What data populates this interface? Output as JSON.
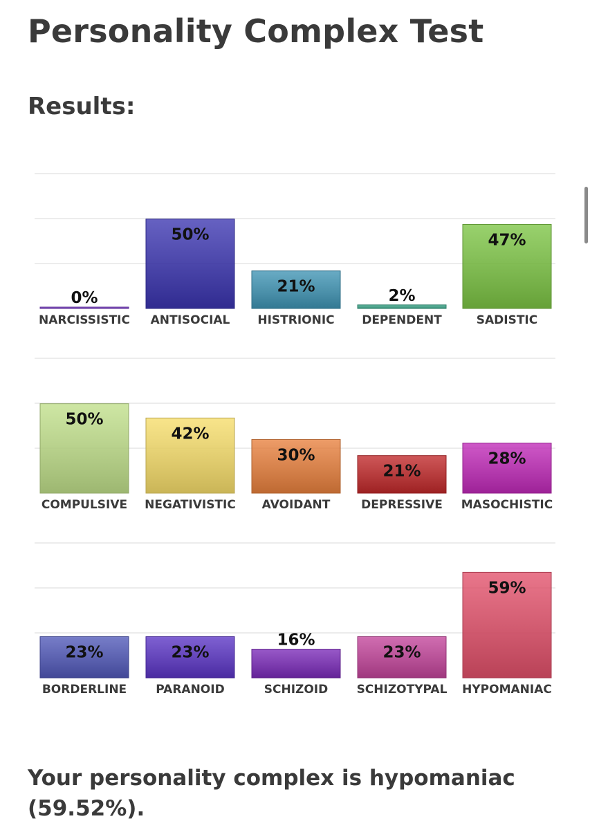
{
  "page": {
    "title": "Personality Complex Test",
    "subtitle": "Results:",
    "summary": "Your personality complex is hypomaniac (59.52%)."
  },
  "chart_data": [
    {
      "type": "bar",
      "categories": [
        "NARCISSISTIC",
        "ANTISOCIAL",
        "HISTRIONIC",
        "DEPENDENT",
        "SADISTIC"
      ],
      "values": [
        0,
        50,
        21,
        2,
        47
      ],
      "value_labels": [
        "0%",
        "50%",
        "21%",
        "2%",
        "47%"
      ],
      "colors": [
        "#7b3fc8",
        "#3b35b0",
        "#3e93b3",
        "#3ea98c",
        "#7cc444"
      ],
      "ylim": [
        0,
        75
      ],
      "grid": true
    },
    {
      "type": "bar",
      "categories": [
        "COMPULSIVE",
        "NEGATIVISTIC",
        "AVOIDANT",
        "DEPRESSIVE",
        "MASOCHISTIC"
      ],
      "values": [
        50,
        42,
        30,
        21,
        28
      ],
      "value_labels": [
        "50%",
        "42%",
        "30%",
        "21%",
        "28%"
      ],
      "colors": [
        "#c0df8a",
        "#f6dd6a",
        "#e8803d",
        "#c0282a",
        "#c02ab8"
      ],
      "ylim": [
        0,
        75
      ],
      "grid": true
    },
    {
      "type": "bar",
      "categories": [
        "BORDERLINE",
        "PARANOID",
        "SCHIZOID",
        "SCHIZOTYPAL",
        "HYPOMANIAC"
      ],
      "values": [
        23,
        23,
        16,
        23,
        59
      ],
      "value_labels": [
        "23%",
        "23%",
        "16%",
        "23%",
        "59%"
      ],
      "colors": [
        "#5058b8",
        "#5a34c4",
        "#7a2ab8",
        "#c2449a",
        "#e2506a"
      ],
      "ylim": [
        0,
        75
      ],
      "grid": true
    }
  ]
}
